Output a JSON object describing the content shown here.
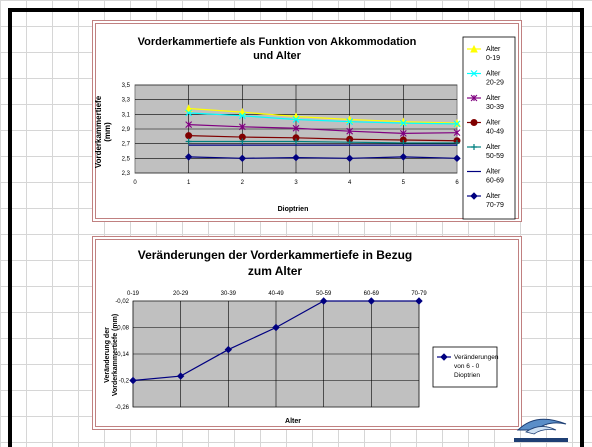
{
  "chart_data": [
    {
      "type": "line",
      "title_line1": "Vorderkammertiefe als Funktion von Akkommodation",
      "title_line2": "und Alter",
      "ylabel_line1": "Vorderkammertiefe",
      "ylabel_line2": "(mm)",
      "xlabel": "Dioptrien",
      "x": [
        0,
        1,
        2,
        3,
        4,
        5,
        6
      ],
      "x_ticks": [
        "0",
        "1",
        "2",
        "3",
        "4",
        "5",
        "6"
      ],
      "ylim": [
        2.3,
        3.5
      ],
      "y_ticks": [
        "3,5",
        "3,3",
        "3,1",
        "2,9",
        "2,7",
        "2,5",
        "2,3"
      ],
      "grid": true,
      "legend_position": "right",
      "series": [
        {
          "name_line1": "Alter",
          "name_line2": "0-19",
          "color": "#ffff00",
          "marker": "triangle",
          "x": [
            1,
            2,
            3,
            4,
            5,
            6
          ],
          "values": [
            3.18,
            3.13,
            3.07,
            3.03,
            3.0,
            2.98
          ]
        },
        {
          "name_line1": "Alter",
          "name_line2": "20-29",
          "color": "#00ffff",
          "marker": "x",
          "x": [
            1,
            2,
            3,
            4,
            5,
            6
          ],
          "values": [
            3.12,
            3.08,
            3.03,
            3.0,
            2.98,
            2.97
          ]
        },
        {
          "name_line1": "Alter",
          "name_line2": "30-39",
          "color": "#800080",
          "marker": "star",
          "x": [
            1,
            2,
            3,
            4,
            5,
            6
          ],
          "values": [
            2.96,
            2.93,
            2.91,
            2.87,
            2.84,
            2.85
          ]
        },
        {
          "name_line1": "Alter",
          "name_line2": "40-49",
          "color": "#800000",
          "marker": "circle",
          "x": [
            1,
            2,
            3,
            4,
            5,
            6
          ],
          "values": [
            2.81,
            2.79,
            2.78,
            2.76,
            2.75,
            2.74
          ]
        },
        {
          "name_line1": "Alter",
          "name_line2": "50-59",
          "color": "#008080",
          "marker": "plus",
          "x": [
            1,
            2,
            3,
            4,
            5,
            6
          ],
          "values": [
            2.73,
            2.73,
            2.73,
            2.72,
            2.71,
            2.71
          ]
        },
        {
          "name_line1": "Alter",
          "name_line2": "60-69",
          "color": "#000080",
          "marker": "none",
          "x": [
            1,
            2,
            3,
            4,
            5,
            6
          ],
          "values": [
            2.68,
            2.68,
            2.68,
            2.68,
            2.68,
            2.68
          ]
        },
        {
          "name_line1": "Alter",
          "name_line2": "70-79",
          "color": "#000080",
          "marker": "diamond",
          "x": [
            1,
            2,
            3,
            4,
            5,
            6
          ],
          "values": [
            2.52,
            2.5,
            2.51,
            2.5,
            2.52,
            2.5
          ]
        }
      ]
    },
    {
      "type": "line",
      "title_line1": "Veränderungen der Vorderkammertiefe in Bezug",
      "title_line2": "zum Alter",
      "ylabel_line1": "Veränderung der",
      "ylabel_line2": "Vorderkammertiefe (mm)",
      "xlabel": "Alter",
      "categories": [
        "0-19",
        "20-29",
        "30-39",
        "40-49",
        "50-59",
        "60-69",
        "70-79"
      ],
      "ylim": [
        -0.26,
        0.0
      ],
      "y_ticks": [
        "-0,02",
        "-0,08",
        "-0,14",
        "-0,2",
        "-0,26"
      ],
      "grid": true,
      "legend_position": "right",
      "series": [
        {
          "name_line1": "Veränderungen",
          "name_line2": "von 6 - 0",
          "name_line3": "Dioptrien",
          "color": "#000080",
          "marker": "diamond",
          "values": [
            -0.2,
            -0.19,
            -0.13,
            -0.08,
            -0.02,
            -0.02,
            -0.01
          ]
        }
      ]
    }
  ],
  "logo": {
    "icon": "eye-logo-icon"
  }
}
